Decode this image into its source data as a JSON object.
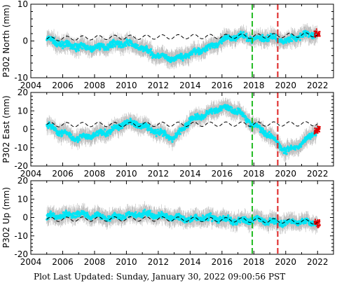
{
  "footer_text": "Plot Last Updated:   Sunday, January 30, 2022 09:00:56 PST",
  "colors": {
    "data": "#00e5f5",
    "error_bars": "#bdbdbd",
    "model": "#000000",
    "recent": "#e00000",
    "line_green": "#22bb22",
    "line_red": "#dd2222"
  },
  "chart_data": [
    {
      "type": "scatter",
      "ylabel": "P302 North (mm)",
      "xlim": [
        2004,
        2023
      ],
      "ylim": [
        -10,
        10
      ],
      "xticks": [
        2004,
        2006,
        2008,
        2010,
        2012,
        2014,
        2016,
        2018,
        2020,
        2022
      ],
      "yticks": [
        -10,
        0,
        10
      ],
      "vlines": [
        {
          "x": 2017.9,
          "color": "green"
        },
        {
          "x": 2019.5,
          "color": "red"
        }
      ],
      "series": [
        {
          "role": "observations",
          "x": [
            2005.0,
            2006.0,
            2007.0,
            2008.0,
            2009.0,
            2010.0,
            2011.0,
            2012.0,
            2013.0,
            2014.0,
            2015.0,
            2016.0,
            2017.0,
            2018.0,
            2019.0,
            2020.0,
            2021.0,
            2022.0
          ],
          "y": [
            0.5,
            -1,
            -1.5,
            -2,
            -1,
            -0.5,
            -2,
            -4,
            -5,
            -3.5,
            -2,
            0,
            1.5,
            0.5,
            1,
            0,
            1.5,
            2
          ]
        },
        {
          "role": "model",
          "x": [
            2005.0,
            2006.0,
            2007.0,
            2008.0,
            2009.0,
            2010.0,
            2011.0,
            2012.0,
            2013.0,
            2014.0,
            2015.0,
            2016.0,
            2017.0,
            2018.0,
            2019.0,
            2020.0,
            2021.0,
            2022.0
          ],
          "y": [
            0.5,
            0.7,
            0.8,
            0.9,
            1.0,
            1.0,
            1.0,
            1.1,
            1.1,
            1.2,
            1.2,
            1.2,
            1.3,
            1.3,
            1.4,
            1.5,
            1.6,
            1.7
          ]
        }
      ]
    },
    {
      "type": "scatter",
      "ylabel": "P302 East (mm)",
      "xlim": [
        2004,
        2023
      ],
      "ylim": [
        -20,
        20
      ],
      "xticks": [
        2004,
        2006,
        2008,
        2010,
        2012,
        2014,
        2016,
        2018,
        2020,
        2022
      ],
      "yticks": [
        -20,
        -10,
        0,
        10,
        20
      ],
      "vlines": [
        {
          "x": 2017.9,
          "color": "green"
        },
        {
          "x": 2019.5,
          "color": "red"
        }
      ],
      "series": [
        {
          "role": "observations",
          "x": [
            2005.0,
            2006.0,
            2007.0,
            2008.0,
            2009.0,
            2010.0,
            2011.0,
            2012.0,
            2013.0,
            2014.0,
            2015.0,
            2016.0,
            2017.0,
            2018.0,
            2019.0,
            2020.0,
            2021.0,
            2022.0
          ],
          "y": [
            2,
            -2,
            -5,
            -3,
            -1,
            4,
            2,
            -2,
            -5,
            5,
            8,
            12,
            10,
            2,
            -3,
            -12,
            -8,
            0
          ]
        },
        {
          "role": "model",
          "x": [
            2005.0,
            2006.0,
            2007.0,
            2008.0,
            2009.0,
            2010.0,
            2011.0,
            2012.0,
            2013.0,
            2014.0,
            2015.0,
            2016.0,
            2017.0,
            2018.0,
            2019.0,
            2020.0,
            2021.0,
            2022.0
          ],
          "y": [
            2.5,
            2.5,
            2.5,
            2.6,
            2.6,
            2.6,
            2.6,
            2.7,
            2.7,
            2.7,
            2.7,
            2.8,
            2.8,
            2.8,
            2.8,
            2.9,
            2.9,
            3.0
          ]
        }
      ]
    },
    {
      "type": "scatter",
      "ylabel": "P302 Up (mm)",
      "xlim": [
        2004,
        2023
      ],
      "ylim": [
        -20,
        20
      ],
      "xticks": [
        2004,
        2006,
        2008,
        2010,
        2012,
        2014,
        2016,
        2018,
        2020,
        2022
      ],
      "yticks": [
        -20,
        -10,
        0,
        10,
        20
      ],
      "vlines": [
        {
          "x": 2017.9,
          "color": "green"
        },
        {
          "x": 2019.5,
          "color": "red"
        }
      ],
      "series": [
        {
          "role": "observations",
          "x": [
            2005.0,
            2006.0,
            2007.0,
            2008.0,
            2009.0,
            2010.0,
            2011.0,
            2012.0,
            2013.0,
            2014.0,
            2015.0,
            2016.0,
            2017.0,
            2018.0,
            2019.0,
            2020.0,
            2021.0,
            2022.0
          ],
          "y": [
            0,
            1,
            2,
            1,
            0,
            1,
            2,
            1,
            0,
            -1,
            0,
            -1,
            -2,
            -1,
            -2,
            -3,
            -2,
            -3
          ]
        },
        {
          "role": "model",
          "x": [
            2005.0,
            2006.0,
            2007.0,
            2008.0,
            2009.0,
            2010.0,
            2011.0,
            2012.0,
            2013.0,
            2014.0,
            2015.0,
            2016.0,
            2017.0,
            2018.0,
            2019.0,
            2020.0,
            2021.0,
            2022.0
          ],
          "y": [
            -1,
            -1,
            -0.9,
            -0.9,
            -0.8,
            -0.8,
            -0.8,
            -0.8,
            -0.9,
            -1,
            -1.1,
            -1.2,
            -1.3,
            -1.5,
            -1.7,
            -2,
            -2.2,
            -2.5
          ]
        }
      ]
    }
  ]
}
